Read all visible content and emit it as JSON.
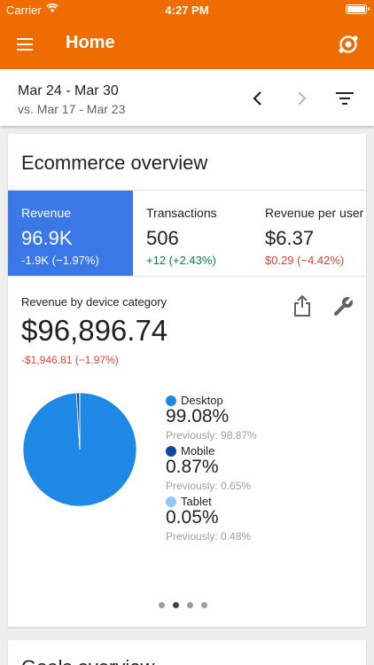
{
  "status": {
    "carrier": "Carrier",
    "time": "4:27 PM"
  },
  "appbar": {
    "title": "Home",
    "menu_icon": "menu-icon",
    "intelligence_icon": "intelligence-icon",
    "color": "#ef6c00"
  },
  "date_range": {
    "current": "Mar 24 - Mar 30",
    "compare": "vs. Mar 17 - Mar 23"
  },
  "card": {
    "title": "Ecommerce overview",
    "metrics": [
      {
        "label": "Revenue",
        "value": "96.9K",
        "change": "-1.9K (−1.97%)",
        "trend": "down",
        "active": true
      },
      {
        "label": "Transactions",
        "value": "506",
        "change": "+12 (+2.43%)",
        "trend": "up",
        "active": false
      },
      {
        "label": "Revenue per user",
        "value": "$6.37",
        "change": "$0.29 (−4.42%)",
        "trend": "down",
        "active": false
      }
    ],
    "breakdown": {
      "title": "Revenue by device category",
      "total": "$96,896.74",
      "change": "-$1,946.81 (−1.97%)"
    },
    "legend": [
      {
        "name": "Desktop",
        "pct": "99.08%",
        "previous": "Previously: 98.87%",
        "color": "#1e88e5"
      },
      {
        "name": "Mobile",
        "pct": "0.87%",
        "previous": "Previously: 0.65%",
        "color": "#0d47a1"
      },
      {
        "name": "Tablet",
        "pct": "0.05%",
        "previous": "Previously: 0.48%",
        "color": "#90caf9"
      }
    ],
    "pager": {
      "count": 4,
      "active_index": 1
    }
  },
  "next_card": {
    "title": "Goals overview"
  },
  "chart_data": {
    "type": "pie",
    "categories": [
      "Desktop",
      "Mobile",
      "Tablet"
    ],
    "values": [
      99.08,
      0.87,
      0.05
    ],
    "colors": [
      "#1e88e5",
      "#0d47a1",
      "#90caf9"
    ]
  }
}
